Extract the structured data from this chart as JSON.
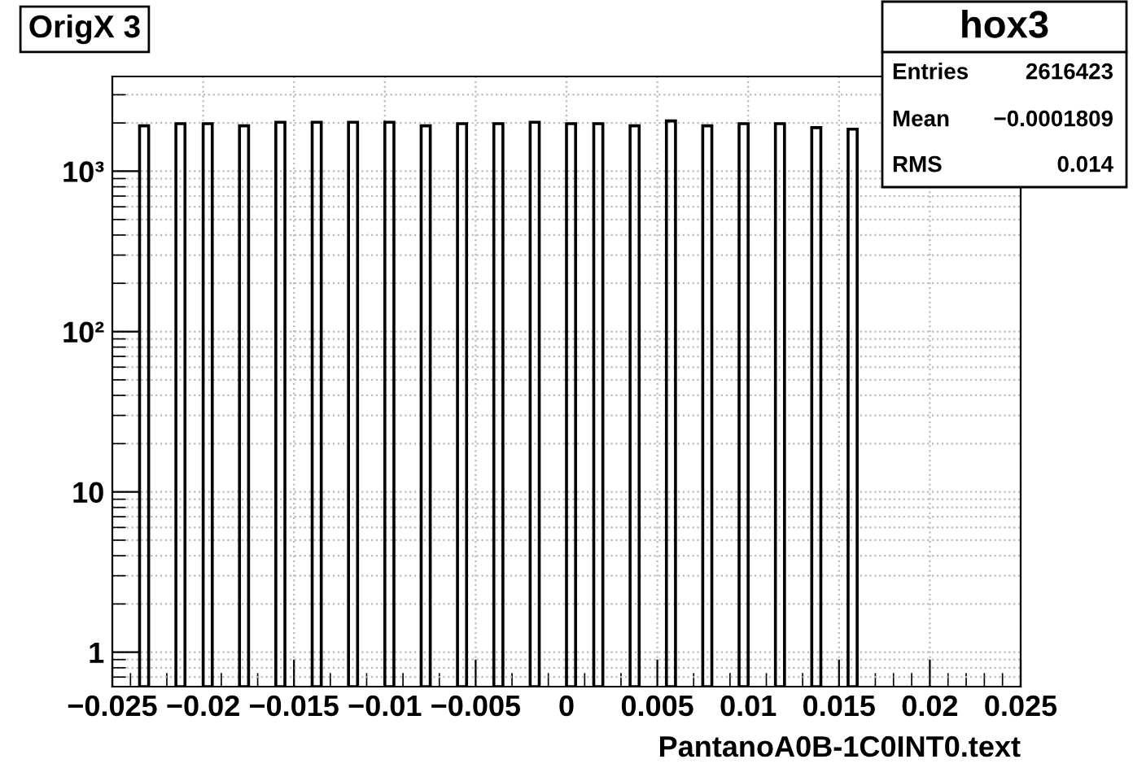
{
  "chart_data": {
    "type": "histogram",
    "title": "OrigX 3",
    "xlabel": "PantanoA0B-1C0INT0.text",
    "annotations": [
      "hox3",
      "Entries",
      "2616423",
      "Mean",
      "−0.0001809",
      "RMS",
      "0.014"
    ],
    "bins": [
      -0.025,
      -0.0245,
      -0.024,
      -0.0235,
      -0.023,
      -0.0225,
      -0.022,
      -0.0215,
      -0.021,
      -0.0205,
      -0.02,
      -0.0195,
      -0.019,
      -0.0185,
      -0.018,
      -0.0175,
      -0.017,
      -0.0165,
      -0.016,
      -0.0155,
      -0.015,
      -0.0145,
      -0.014,
      -0.0135,
      -0.013,
      -0.0125,
      -0.012,
      -0.0115,
      -0.011,
      -0.0105,
      -0.01,
      -0.0095,
      -0.009,
      -0.0085,
      -0.008,
      -0.0075,
      -0.007,
      -0.0065,
      -0.006,
      -0.0055,
      -0.005,
      -0.0045,
      -0.004,
      -0.0035,
      -0.003,
      -0.0025,
      -0.002,
      -0.0015,
      -0.001,
      -0.0005,
      0,
      0.0005,
      0.001,
      0.0015,
      0.002,
      0.0025,
      0.003,
      0.0035,
      0.004,
      0.0045,
      0.005,
      0.0055,
      0.006,
      0.0065,
      0.007,
      0.0075,
      0.008,
      0.0085,
      0.009,
      0.0095,
      0.01,
      0.0105,
      0.011,
      0.0115,
      0.012,
      0.0125,
      0.013,
      0.0135,
      0.014,
      0.0145,
      0.015,
      0.0155,
      0.016,
      0.0165,
      0.017,
      0.0175,
      0.018,
      0.0185,
      0.019,
      0.0195,
      0.02,
      0.0205,
      0.021,
      0.0215,
      0.022,
      0.0225,
      0.023,
      0.0235,
      0.024,
      0.0245,
      0.025
    ],
    "values": [
      null,
      null,
      null,
      1920,
      null,
      null,
      null,
      1980,
      null,
      null,
      1980,
      null,
      null,
      null,
      1920,
      null,
      null,
      null,
      2020,
      null,
      null,
      null,
      2020,
      null,
      null,
      null,
      2020,
      null,
      null,
      null,
      2020,
      null,
      null,
      null,
      1920,
      null,
      null,
      null,
      1980,
      null,
      null,
      null,
      1980,
      null,
      null,
      null,
      2020,
      null,
      null,
      null,
      1980,
      null,
      null,
      1980,
      null,
      null,
      null,
      1920,
      null,
      null,
      null,
      2060,
      null,
      null,
      null,
      1920,
      null,
      null,
      null,
      1980,
      null,
      null,
      null,
      1980,
      null,
      null,
      null,
      1870,
      null,
      null,
      null,
      1830,
      null,
      null,
      null,
      null,
      null,
      null,
      null,
      null,
      null,
      null,
      null,
      null,
      null,
      null,
      null,
      null,
      null,
      null
    ],
    "color": "#000000",
    "log": true,
    "grid": true,
    "xlim": [
      -0.025,
      0.025
    ],
    "xticks": [
      {
        "value": -0.025,
        "label": "−0.025"
      },
      {
        "value": -0.02,
        "label": "−0.02"
      },
      {
        "value": -0.015,
        "label": "−0.015"
      },
      {
        "value": -0.01,
        "label": "−0.01"
      },
      {
        "value": -0.005,
        "label": "−0.005"
      },
      0,
      0.005,
      0.01,
      0.015,
      0.02,
      0.025
    ],
    "ylim": [
      0.61,
      3900
    ],
    "yticks": [
      1,
      10,
      {
        "value": 100,
        "label": "10²"
      },
      {
        "value": 1000,
        "label": "10³"
      }
    ]
  }
}
